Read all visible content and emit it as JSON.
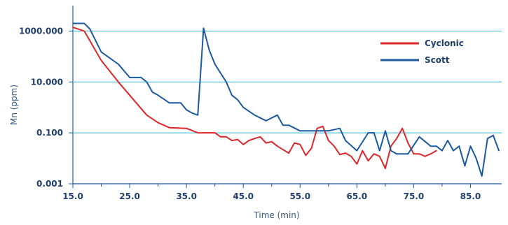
{
  "chart_data": {
    "type": "line",
    "title": "",
    "xlabel": "Time (min)",
    "ylabel": "Mn (ppm)",
    "y_scale": "log",
    "xlim": [
      15,
      90
    ],
    "ylim": [
      0.001,
      10000
    ],
    "x_ticks": [
      "15.0",
      "25.0",
      "35.0",
      "45.0",
      "55.0",
      "65.0",
      "75.0",
      "85.0"
    ],
    "y_ticks": [
      "0.001",
      "0.100",
      "10.000",
      "1000.000"
    ],
    "grid": "horizontal",
    "legend_position": "top-right",
    "series": [
      {
        "name": "Cyclonic",
        "color": "#e0262b",
        "x": [
          15,
          17,
          20,
          23,
          25,
          28,
          30,
          32,
          35,
          37,
          40,
          41,
          42,
          43,
          44,
          45,
          46,
          47,
          48,
          49,
          50,
          51,
          53,
          54,
          55,
          56,
          57,
          58,
          59,
          60,
          61,
          62,
          63,
          64,
          65,
          66,
          67,
          68,
          69,
          70,
          71,
          72,
          73,
          74,
          75,
          76,
          77,
          78,
          79
        ],
        "y": [
          1400,
          1000,
          70,
          10,
          3.0,
          0.5,
          0.25,
          0.16,
          0.15,
          0.1,
          0.1,
          0.07,
          0.07,
          0.05,
          0.055,
          0.035,
          0.05,
          0.06,
          0.07,
          0.04,
          0.045,
          0.03,
          0.016,
          0.04,
          0.035,
          0.013,
          0.025,
          0.15,
          0.18,
          0.05,
          0.03,
          0.014,
          0.016,
          0.012,
          0.006,
          0.02,
          0.008,
          0.015,
          0.012,
          0.004,
          0.03,
          0.06,
          0.15,
          0.04,
          0.015,
          0.015,
          0.012,
          0.015,
          0.02
        ]
      },
      {
        "name": "Scott",
        "color": "#1c5aa0",
        "x": [
          15,
          17,
          18,
          20,
          23,
          25,
          27,
          28,
          29,
          30,
          32,
          34,
          35,
          36,
          37,
          38,
          39,
          40,
          42,
          43,
          44,
          45,
          47,
          49,
          51,
          52,
          53,
          55,
          56,
          58,
          60,
          62,
          63,
          65,
          67,
          68,
          69,
          70,
          71,
          72,
          74,
          76,
          78,
          79,
          80,
          81,
          82,
          83,
          84,
          85,
          86,
          87,
          88,
          89,
          90
        ],
        "y": [
          2000,
          2000,
          1200,
          150,
          50,
          15,
          15,
          10,
          4,
          3,
          1.5,
          1.5,
          0.8,
          0.6,
          0.5,
          1300,
          180,
          50,
          10,
          3,
          2,
          1,
          0.5,
          0.3,
          0.5,
          0.2,
          0.2,
          0.12,
          0.12,
          0.12,
          0.12,
          0.15,
          0.05,
          0.02,
          0.1,
          0.1,
          0.02,
          0.12,
          0.02,
          0.015,
          0.015,
          0.07,
          0.03,
          0.03,
          0.02,
          0.05,
          0.02,
          0.03,
          0.005,
          0.03,
          0.01,
          0.002,
          0.06,
          0.08,
          0.02
        ]
      }
    ]
  }
}
